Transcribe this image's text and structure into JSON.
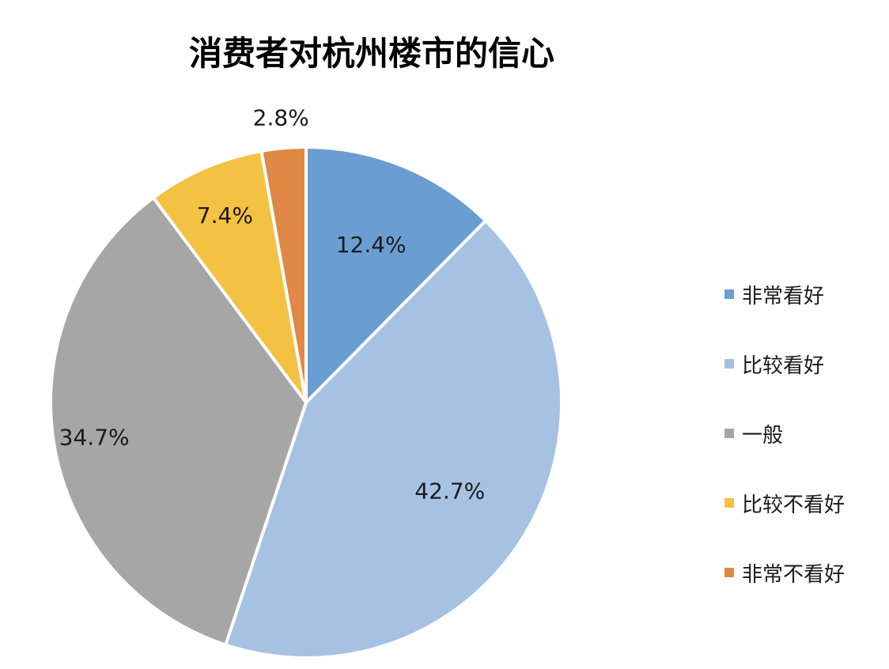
{
  "chart_data": {
    "type": "pie",
    "title": "消费者对杭州楼市的信心",
    "categories": [
      "非常看好",
      "比较看好",
      "一般",
      "比较不看好",
      "非常不看好"
    ],
    "values": [
      12.4,
      42.7,
      34.7,
      7.4,
      2.8
    ],
    "labels": [
      "12.4%",
      "42.7%",
      "34.7%",
      "7.4%",
      "2.8%"
    ],
    "colors": [
      "#6a9ed3",
      "#a6c2e3",
      "#a6a6a6",
      "#f4c243",
      "#e08845"
    ],
    "legend_position": "right",
    "start_angle": "12 o'clock",
    "direction": "clockwise"
  }
}
